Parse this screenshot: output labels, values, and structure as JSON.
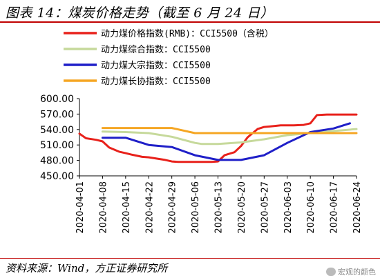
{
  "header": {
    "title": "图表 14：煤炭价格走势（截至 6 月 24 日）"
  },
  "footer": {
    "source": "资料来源：Wind，方正证券研究所"
  },
  "watermark": {
    "text": "宏观的颜色"
  },
  "chart_data": {
    "type": "line",
    "title": "",
    "xlabel": "",
    "ylabel": "",
    "x_start": "2020-04-01",
    "x_end": "2020-06-24",
    "ylim": [
      450,
      600
    ],
    "yticks": [
      "600.00",
      "570.00",
      "540.00",
      "510.00",
      "480.00",
      "450.00"
    ],
    "ytick_values": [
      600,
      570,
      540,
      510,
      480,
      450
    ],
    "xticks": [
      "2020-04-01",
      "2020-04-08",
      "2020-04-15",
      "2020-04-22",
      "2020-04-29",
      "2020-05-06",
      "2020-05-13",
      "2020-05-20",
      "2020-05-27",
      "2020-06-03",
      "2020-06-10",
      "2020-06-17",
      "2020-06-24"
    ],
    "grid": false,
    "legend_position": "top",
    "series": [
      {
        "name": "动力煤价格指数(RMB)：CCI5500（含税）",
        "color": "#e8211b",
        "x": [
          "2020-04-01",
          "2020-04-03",
          "2020-04-06",
          "2020-04-08",
          "2020-04-10",
          "2020-04-13",
          "2020-04-15",
          "2020-04-17",
          "2020-04-20",
          "2020-04-22",
          "2020-04-24",
          "2020-04-27",
          "2020-04-29",
          "2020-05-01",
          "2020-05-06",
          "2020-05-08",
          "2020-05-11",
          "2020-05-13",
          "2020-05-15",
          "2020-05-18",
          "2020-05-20",
          "2020-05-22",
          "2020-05-25",
          "2020-05-27",
          "2020-05-29",
          "2020-06-01",
          "2020-06-03",
          "2020-06-05",
          "2020-06-08",
          "2020-06-10",
          "2020-06-12",
          "2020-06-15",
          "2020-06-17",
          "2020-06-19",
          "2020-06-22",
          "2020-06-24"
        ],
        "y": [
          532,
          523,
          520,
          517,
          505,
          497,
          494,
          491,
          487,
          486,
          484,
          481,
          478,
          477,
          477,
          477,
          477,
          478,
          490,
          496,
          508,
          525,
          541,
          545,
          546,
          548,
          548,
          548,
          549,
          552,
          568,
          569,
          569,
          569,
          569,
          569
        ]
      },
      {
        "name": "动力煤综合指数：CCI5500",
        "color": "#c6d99b",
        "x": [
          "2020-04-08",
          "2020-04-15",
          "2020-04-22",
          "2020-04-29",
          "2020-05-06",
          "2020-05-08",
          "2020-05-13",
          "2020-05-20",
          "2020-05-27",
          "2020-06-03",
          "2020-06-10",
          "2020-06-17",
          "2020-06-24"
        ],
        "y": [
          536,
          535,
          533,
          526,
          514,
          512,
          512,
          515,
          521,
          529,
          533,
          537,
          541
        ]
      },
      {
        "name": "动力煤大宗指数：CCI5500",
        "color": "#1f1fc8",
        "x": [
          "2020-04-08",
          "2020-04-15",
          "2020-04-22",
          "2020-04-29",
          "2020-05-06",
          "2020-05-13",
          "2020-05-20",
          "2020-05-27",
          "2020-06-03",
          "2020-06-10",
          "2020-06-17",
          "2020-06-22"
        ],
        "y": [
          524,
          524,
          510,
          506,
          490,
          481,
          481,
          490,
          514,
          535,
          542,
          552
        ]
      },
      {
        "name": "动力煤长协指数：CCI5500",
        "color": "#f5a623",
        "x": [
          "2020-04-08",
          "2020-04-15",
          "2020-04-22",
          "2020-04-29",
          "2020-05-06",
          "2020-05-13",
          "2020-05-20",
          "2020-05-27",
          "2020-06-03",
          "2020-06-10",
          "2020-06-17",
          "2020-06-24"
        ],
        "y": [
          543,
          543,
          543,
          543,
          533,
          533,
          533,
          533,
          533,
          533,
          533,
          533
        ]
      }
    ]
  }
}
